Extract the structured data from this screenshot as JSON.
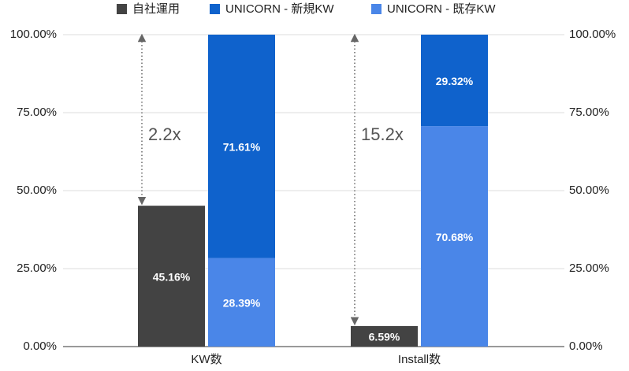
{
  "chart_data": {
    "type": "grouped_stacked_bar",
    "categories": [
      "KW数",
      "Install数"
    ],
    "series": [
      {
        "name": "自社運用",
        "color": "#434343",
        "values": [
          45.16,
          6.59
        ],
        "value_labels": [
          "45.16%",
          "6.59%"
        ]
      },
      {
        "name": "UNICORN - 新規KW",
        "color": "#0f62cc",
        "values": [
          71.61,
          29.32
        ],
        "value_labels": [
          "71.61%",
          "29.32%"
        ]
      },
      {
        "name": "UNICORN - 既存KW",
        "color": "#4a86e8",
        "values": [
          28.39,
          70.68
        ],
        "value_labels": [
          "28.39%",
          "70.68%"
        ]
      }
    ],
    "ylim": [
      0,
      100
    ],
    "yticks": [
      {
        "value": 0,
        "label": "0.00%"
      },
      {
        "value": 25,
        "label": "25.00%"
      },
      {
        "value": 50,
        "label": "50.00%"
      },
      {
        "value": 75,
        "label": "75.00%"
      },
      {
        "value": 100,
        "label": "100.00%"
      }
    ],
    "y2lim": [
      0,
      100
    ],
    "y2ticks": [
      {
        "value": 0,
        "label": "0.00%"
      },
      {
        "value": 25,
        "label": "25.00%"
      },
      {
        "value": 50,
        "label": "50.00%"
      },
      {
        "value": 75,
        "label": "75.00%"
      },
      {
        "value": 100,
        "label": "100.00%"
      }
    ],
    "annotations": [
      "2.2x",
      "15.2x"
    ],
    "grid": true,
    "legend": "top"
  }
}
